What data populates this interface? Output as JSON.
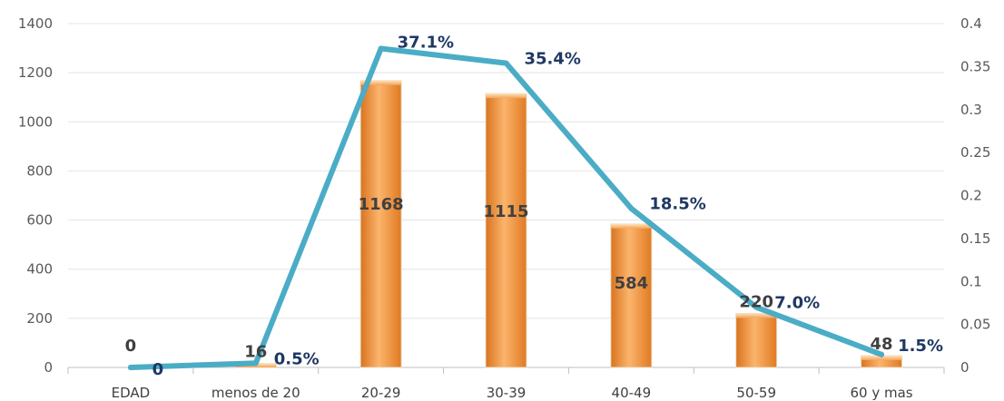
{
  "chart_data": {
    "type": "bar",
    "categories": [
      "EDAD",
      "menos de 20",
      "20-29",
      "30-39",
      "40-49",
      "50-59",
      "60 y mas"
    ],
    "series": [
      {
        "type": "bar",
        "axis": "left",
        "values": [
          0,
          16,
          1168,
          1115,
          584,
          220,
          48
        ],
        "labels": [
          "0",
          "16",
          "1168",
          "1115",
          "584",
          "220",
          "48"
        ],
        "color": "#f79646"
      },
      {
        "type": "line",
        "axis": "right",
        "values": [
          0,
          0.005,
          0.371,
          0.354,
          0.185,
          0.07,
          0.015
        ],
        "labels": [
          "0",
          "0.5%",
          "37.1%",
          "35.4%",
          "18.5%",
          "7.0%",
          "1.5%"
        ],
        "color": "#4bacc6",
        "label_color": "#1f3864"
      }
    ],
    "y_left": {
      "lim": [
        0,
        1400
      ],
      "ticks": [
        "0",
        "200",
        "400",
        "600",
        "800",
        "1000",
        "1200",
        "1400"
      ]
    },
    "y_right": {
      "lim": [
        0,
        0.4
      ],
      "ticks": [
        "0",
        "0.05",
        "0.1",
        "0.15",
        "0.2",
        "0.25",
        "0.3",
        "0.35",
        "0.4"
      ]
    },
    "grid": true,
    "legend": "none"
  }
}
